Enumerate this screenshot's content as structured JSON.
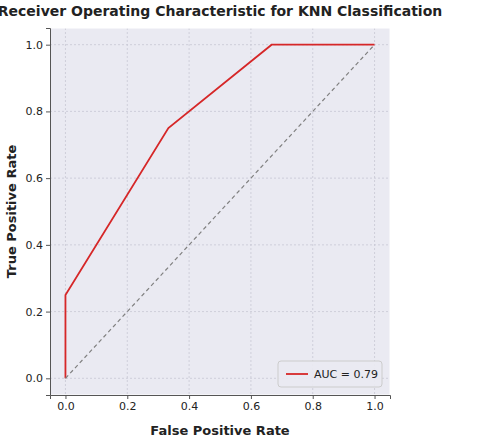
{
  "chart_data": {
    "type": "line",
    "title": "Receiver Operating Characteristic for KNN Classification",
    "x_label": "False Positive Rate",
    "y_label": "True Positive Rate",
    "series": [
      {
        "name": "AUC = 0.79",
        "color": "#d62728",
        "line_style": "solid",
        "x": [
          0.0,
          0.0,
          0.333,
          0.667,
          1.0
        ],
        "values": [
          0.0,
          0.25,
          0.75,
          1.0,
          1.0
        ]
      },
      {
        "color": "#808080",
        "line_style": "dashed",
        "x": [
          0.0,
          1.0
        ],
        "values": [
          0.0,
          1.0
        ]
      }
    ],
    "xlim": [
      -0.05,
      1.05
    ],
    "ylim": [
      -0.05,
      1.05
    ],
    "xticks": [
      {
        "value": 0,
        "label": "0.0"
      },
      {
        "value": 0.2,
        "label": "0.2"
      },
      {
        "value": 0.4,
        "label": "0.4"
      },
      {
        "value": 0.6,
        "label": "0.6"
      },
      {
        "value": 0.8,
        "label": "0.8"
      },
      {
        "value": 1,
        "label": "1.0"
      }
    ],
    "yticks": [
      {
        "value": 0,
        "label": "0.0"
      },
      {
        "value": 0.2,
        "label": "0.2"
      },
      {
        "value": 0.4,
        "label": "0.4"
      },
      {
        "value": 0.6,
        "label": "0.6"
      },
      {
        "value": 0.8,
        "label": "0.8"
      },
      {
        "value": 1,
        "label": "1.0"
      }
    ],
    "grid": true,
    "legend": "lower right"
  }
}
